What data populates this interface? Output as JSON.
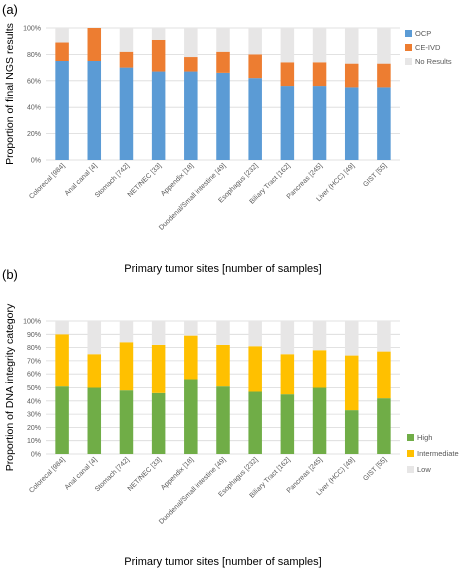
{
  "chart_data": [
    {
      "panel_label": "(a)",
      "type": "bar",
      "stacked": true,
      "title": "",
      "xlabel": "Primary tumor sites [number of samples]",
      "ylabel": "Proportion of final NGS results",
      "ylim": [
        0,
        100
      ],
      "yticks": [
        "0%",
        "20%",
        "40%",
        "60%",
        "80%",
        "100%"
      ],
      "grid": true,
      "legend_position": "right",
      "categories": [
        "Colorecal [984]",
        "Anal canal [4]",
        "Stomach [742]",
        "NET/NEC [33]",
        "Appendix [18]",
        "Duodenal/Small intestine [49]",
        "Esophagus [232]",
        "Biliary Tract [162]",
        "Pancreas [245]",
        "Liver (HCC) [49]",
        "GIST [55]"
      ],
      "series": [
        {
          "name": "OCP",
          "color": "#5b9bd5",
          "values": [
            75,
            75,
            70,
            67,
            67,
            66,
            62,
            56,
            56,
            55,
            55
          ]
        },
        {
          "name": "CE-IVD",
          "color": "#ed7d31",
          "values": [
            14,
            25,
            12,
            24,
            11,
            16,
            18,
            18,
            18,
            18,
            18
          ]
        },
        {
          "name": "No Results",
          "color": "#e7e6e6",
          "values": [
            11,
            0,
            18,
            9,
            22,
            18,
            20,
            26,
            26,
            27,
            27
          ]
        }
      ]
    },
    {
      "panel_label": "(b)",
      "type": "bar",
      "stacked": true,
      "title": "",
      "xlabel": "Primary tumor sites [number of samples]",
      "ylabel": "Proportion of DNA integrity category",
      "ylim": [
        0,
        100
      ],
      "yticks": [
        "0%",
        "10%",
        "20%",
        "30%",
        "40%",
        "50%",
        "60%",
        "70%",
        "80%",
        "90%",
        "100%"
      ],
      "grid": true,
      "legend_position": "right",
      "categories": [
        "Colorecal [984]",
        "Anal canal [4]",
        "Stomach [742]",
        "NET/NEC [33]",
        "Appendix [18]",
        "Duodenal/Small intestine [49]",
        "Esophagus [232]",
        "Biliary Tract [162]",
        "Pancreas [245]",
        "Liver (HCC) [49]",
        "GIST [55]"
      ],
      "series": [
        {
          "name": "High",
          "color": "#70ad47",
          "values": [
            51,
            50,
            48,
            46,
            56,
            51,
            47,
            45,
            50,
            33,
            42
          ]
        },
        {
          "name": "Intermediate",
          "color": "#ffc000",
          "values": [
            39,
            25,
            36,
            36,
            33,
            31,
            34,
            30,
            28,
            41,
            35
          ]
        },
        {
          "name": "Low",
          "color": "#e7e6e6",
          "values": [
            10,
            25,
            16,
            18,
            11,
            18,
            19,
            25,
            22,
            26,
            23
          ]
        }
      ]
    }
  ]
}
